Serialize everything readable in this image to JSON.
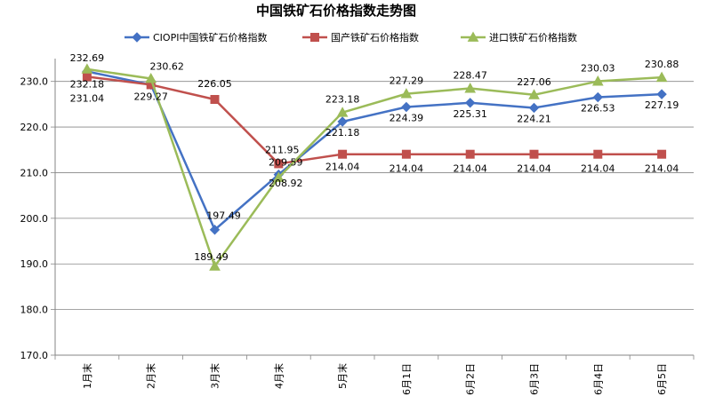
{
  "chart_data": {
    "type": "line",
    "title": "中国铁矿石价格指数走势图",
    "categories": [
      "1月末",
      "2月末",
      "3月末",
      "4月末",
      "5月末",
      "6月1日",
      "6月2日",
      "6月3日",
      "6月4日",
      "6月5日"
    ],
    "series": [
      {
        "name": "CIOPI中国铁矿石价格指数",
        "color": "#4472C4",
        "marker": "diamond",
        "values": [
          232.18,
          229.27,
          197.49,
          209.59,
          221.18,
          224.39,
          225.31,
          224.21,
          226.53,
          227.19
        ],
        "labels": [
          "232.18",
          "229.27",
          "197.49",
          "209.59",
          "221.18",
          "224.39",
          "225.31",
          "224.21",
          "226.53",
          "227.19"
        ]
      },
      {
        "name": "国产铁矿石价格指数",
        "color": "#C0504D",
        "marker": "square",
        "values": [
          231.04,
          229.27,
          226.05,
          211.95,
          214.04,
          214.04,
          214.04,
          214.04,
          214.04,
          214.04
        ],
        "labels": [
          "231.04",
          "",
          "226.05",
          "211.95",
          "214.04",
          "214.04",
          "214.04",
          "214.04",
          "214.04",
          "214.04"
        ]
      },
      {
        "name": "进口铁矿石价格指数",
        "color": "#9BBB59",
        "marker": "triangle",
        "values": [
          232.69,
          230.62,
          189.49,
          208.92,
          223.18,
          227.29,
          228.47,
          227.06,
          230.03,
          230.88
        ],
        "labels": [
          "232.69",
          "230.62",
          "189.49",
          "208.92",
          "223.18",
          "227.29",
          "228.47",
          "227.06",
          "230.03",
          "230.88"
        ]
      }
    ],
    "ylim": [
      170,
      235
    ],
    "yticks": [
      "170.0",
      "180.0",
      "190.0",
      "200.0",
      "210.0",
      "220.0",
      "230.0"
    ],
    "ytick_values": [
      170,
      180,
      190,
      200,
      210,
      220,
      230
    ],
    "xlabel": "",
    "ylabel": "",
    "grid": true,
    "legend": "top"
  }
}
